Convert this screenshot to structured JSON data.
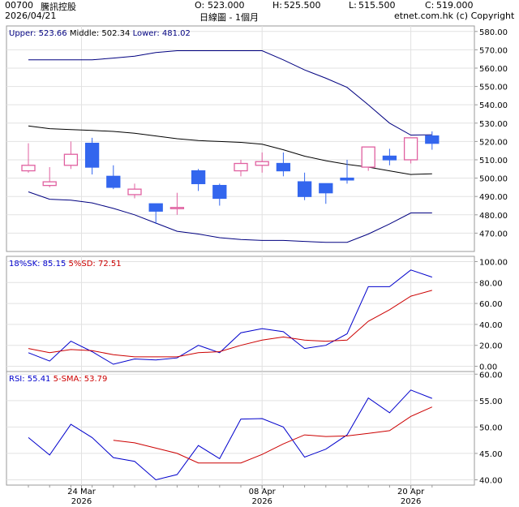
{
  "header": {
    "code": "00700",
    "name": "騰訊控股",
    "date": "2026/04/21",
    "open_label": "O:",
    "open": "523.000",
    "high_label": "H:",
    "high": "525.500",
    "low_label": "L:",
    "low": "515.500",
    "close_label": "C:",
    "close": "519.000",
    "period": "日線圖 - 1個月",
    "source": "etnet.com.hk (c) Copyright"
  },
  "colors": {
    "frame": "#999999",
    "up_candle": "#e060a0",
    "down_candle": "#3366ee",
    "band": "#000080",
    "middle": "#000000",
    "fast_line": "#0000cc",
    "slow_line": "#cc0000"
  },
  "chart_data": [
    {
      "type": "candlestick",
      "legend": {
        "upper_label": "Upper:",
        "upper": "523.66",
        "middle_label": "Middle:",
        "middle": "502.34",
        "lower_label": "Lower:",
        "lower": "481.02"
      },
      "ylim": [
        460,
        583
      ],
      "yticks": [
        "470.00",
        "480.00",
        "490.00",
        "500.00",
        "510.00",
        "520.00",
        "530.00",
        "540.00",
        "550.00",
        "560.00",
        "570.00",
        "580.00"
      ],
      "ytick_values": [
        470,
        480,
        490,
        500,
        510,
        520,
        530,
        540,
        550,
        560,
        570,
        580
      ],
      "candles": [
        {
          "o": 504,
          "h": 519,
          "l": 503,
          "c": 507
        },
        {
          "o": 496,
          "h": 506,
          "l": 495,
          "c": 498
        },
        {
          "o": 507,
          "h": 520,
          "l": 505,
          "c": 513
        },
        {
          "o": 519,
          "h": 522,
          "l": 502,
          "c": 506
        },
        {
          "o": 501,
          "h": 507,
          "l": 494,
          "c": 495
        },
        {
          "o": 491,
          "h": 497,
          "l": 489,
          "c": 494
        },
        {
          "o": 486,
          "h": 486,
          "l": 475,
          "c": 482
        },
        {
          "o": 484,
          "h": 492,
          "l": 480,
          "c": 484
        },
        {
          "o": 504,
          "h": 505,
          "l": 493,
          "c": 497
        },
        {
          "o": 496,
          "h": 497,
          "l": 485,
          "c": 489
        },
        {
          "o": 504,
          "h": 510,
          "l": 501,
          "c": 508
        },
        {
          "o": 507,
          "h": 514,
          "l": 503,
          "c": 509
        },
        {
          "o": 508,
          "h": 514,
          "l": 501,
          "c": 504
        },
        {
          "o": 498,
          "h": 503,
          "l": 488,
          "c": 490
        },
        {
          "o": 497,
          "h": 497,
          "l": 486,
          "c": 492
        },
        {
          "o": 500,
          "h": 510,
          "l": 497,
          "c": 499
        },
        {
          "o": 506,
          "h": 517,
          "l": 504,
          "c": 517
        },
        {
          "o": 512,
          "h": 516,
          "l": 507,
          "c": 510
        },
        {
          "o": 510,
          "h": 522,
          "l": 508,
          "c": 522
        },
        {
          "o": 523,
          "h": 525.5,
          "l": 515.5,
          "c": 519
        }
      ],
      "upper": [
        564.5,
        564.5,
        564.5,
        564.5,
        565.5,
        566.5,
        568.5,
        569.5,
        569.5,
        569.5,
        569.5,
        569.5,
        564.5,
        559,
        554.5,
        549.5,
        540,
        530,
        523.5,
        523.66
      ],
      "middle": [
        528.5,
        527,
        526.5,
        526,
        525.5,
        524.5,
        523,
        521.5,
        520.5,
        520,
        519.5,
        518.5,
        515.5,
        512,
        509.5,
        507.5,
        506,
        504,
        502,
        502.34
      ],
      "lower": [
        492.5,
        488.5,
        488,
        486.5,
        483.5,
        480,
        475.5,
        471,
        469.5,
        467.5,
        466.5,
        466,
        466,
        465.5,
        465,
        465,
        469.5,
        475,
        481,
        481.02
      ]
    },
    {
      "type": "line",
      "legend": {
        "k_label": "18%SK:",
        "k": "85.15",
        "d_label": "5%SD:",
        "d": "72.51"
      },
      "ylim": [
        -5,
        105
      ],
      "yticks": [
        "0.00",
        "20.00",
        "40.00",
        "60.00",
        "80.00",
        "100.00"
      ],
      "ytick_values": [
        0,
        20,
        40,
        60,
        80,
        100
      ],
      "series": [
        {
          "name": "18%SK",
          "values": [
            13,
            5,
            24,
            14,
            2,
            7,
            6,
            8,
            20,
            13,
            32,
            36,
            33,
            17,
            20,
            31,
            76,
            76,
            92,
            85.15
          ]
        },
        {
          "name": "5%SD",
          "values": [
            17,
            13,
            16,
            15,
            11,
            9,
            9,
            9,
            13,
            14,
            20,
            25,
            28,
            25,
            24,
            25,
            43,
            54,
            67,
            72.51
          ]
        }
      ]
    },
    {
      "type": "line",
      "legend": {
        "rsi_label": "RSI:",
        "rsi": "55.41",
        "sma_label": "5-SMA:",
        "sma": "53.79"
      },
      "ylim": [
        39,
        60.5
      ],
      "yticks": [
        "40.00",
        "45.00",
        "50.00",
        "55.00",
        "60.00"
      ],
      "ytick_values": [
        40,
        45,
        50,
        55,
        60
      ],
      "series": [
        {
          "name": "RSI",
          "values": [
            48,
            44.7,
            50.5,
            48,
            44.2,
            43.5,
            40,
            41,
            46.5,
            44,
            51.5,
            51.6,
            50,
            44.3,
            45.8,
            48.5,
            55.5,
            52.7,
            57,
            55.41
          ]
        },
        {
          "name": "5-SMA",
          "values": [
            null,
            null,
            null,
            null,
            47.5,
            47,
            46,
            45,
            43.2,
            43.2,
            43.2,
            44.8,
            46.8,
            48.5,
            48.2,
            48.3,
            48.8,
            49.3,
            52,
            53.79
          ]
        }
      ]
    }
  ],
  "x_axis": {
    "labels": [
      {
        "index": 2.5,
        "line1": "24 Mar",
        "line2": "2026"
      },
      {
        "index": 11,
        "line1": "08 Apr",
        "line2": "2026"
      },
      {
        "index": 18,
        "line1": "20 Apr",
        "line2": "2026"
      }
    ]
  }
}
